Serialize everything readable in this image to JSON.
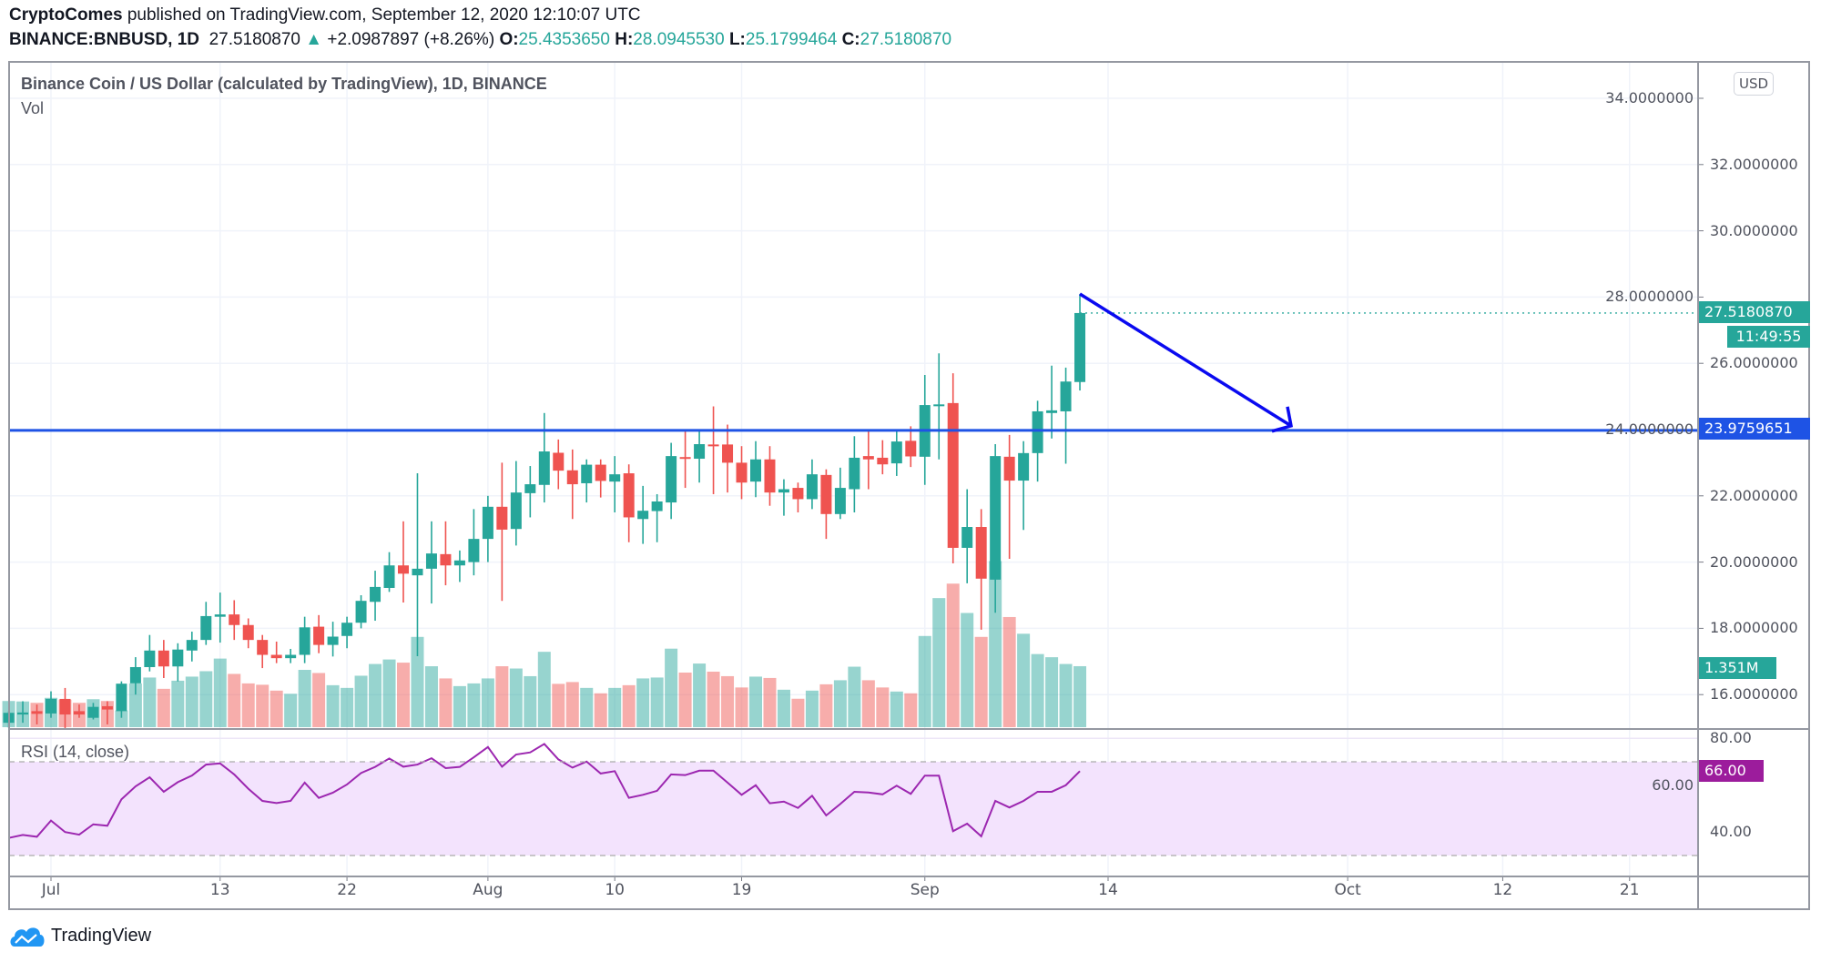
{
  "header": {
    "author": "CryptoComes",
    "published": "published on TradingView.com, September 12, 2020 12:10:07 UTC",
    "symbol": "BINANCE:BNBUSD, 1D",
    "last": "27.5180870",
    "change": "+2.0987897 (+8.26%)",
    "o_label": "O:",
    "o": "25.4353650",
    "h_label": "H:",
    "h": "28.0945530",
    "l_label": "L:",
    "l": "25.1799464",
    "c_label": "C:",
    "c": "27.5180870"
  },
  "legend": {
    "title": "Binance Coin / US Dollar (calculated by TradingView), 1D, BINANCE",
    "volume": "Vol",
    "rsi": "RSI (14, close)"
  },
  "currency_badge": "USD",
  "colors": {
    "up": "#26a69a",
    "down": "#ef5350",
    "support_line": "#1e53e5",
    "arrow": "#0a0af0",
    "rsi": "#9c27b0",
    "rsi_band": "#f3e3fd"
  },
  "tags": {
    "last_price": "27.5180870",
    "countdown": "11:49:55",
    "support_price": "23.9759651",
    "volume": "1.351M",
    "rsi": "66.00"
  },
  "footer": {
    "brand": "TradingView"
  },
  "chart_data": [
    {
      "type": "candlestick",
      "price_ticks": [
        "16.0000000",
        "18.0000000",
        "20.0000000",
        "22.0000000",
        "24.0000000",
        "26.0000000",
        "28.0000000",
        "30.0000000",
        "32.0000000",
        "34.0000000"
      ],
      "time_ticks": [
        "Jul",
        "13",
        "22",
        "Aug",
        "10",
        "19",
        "Sep",
        "14",
        "Oct",
        "12",
        "21"
      ],
      "support_level": 23.9759651,
      "arrow": {
        "from_price": 28.094553,
        "to_price": 23.9759651
      },
      "ohlc": [
        [
          15.15,
          15.5,
          15.0,
          15.45
        ],
        [
          15.4,
          15.8,
          15.15,
          15.46
        ],
        [
          15.5,
          15.7,
          15.1,
          15.42
        ],
        [
          15.43,
          16.1,
          15.3,
          15.87
        ],
        [
          15.87,
          16.2,
          14.98,
          15.4
        ],
        [
          15.5,
          15.7,
          15.3,
          15.4
        ],
        [
          15.3,
          15.75,
          15.25,
          15.63
        ],
        [
          15.65,
          15.8,
          15.1,
          15.55
        ],
        [
          15.5,
          16.4,
          15.3,
          16.33
        ],
        [
          16.34,
          17.13,
          16.0,
          16.83
        ],
        [
          16.83,
          17.8,
          16.7,
          17.33
        ],
        [
          17.33,
          17.65,
          16.5,
          16.85
        ],
        [
          16.85,
          17.55,
          16.4,
          17.36
        ],
        [
          17.33,
          17.9,
          17.0,
          17.65
        ],
        [
          17.65,
          18.8,
          17.5,
          18.37
        ],
        [
          18.35,
          19.08,
          17.57,
          18.42
        ],
        [
          18.42,
          18.85,
          17.65,
          18.1
        ],
        [
          18.1,
          18.3,
          17.4,
          17.65
        ],
        [
          17.65,
          17.8,
          16.8,
          17.2
        ],
        [
          17.2,
          17.6,
          16.95,
          17.1
        ],
        [
          17.1,
          17.38,
          16.95,
          17.2
        ],
        [
          17.2,
          18.35,
          16.95,
          18.03
        ],
        [
          18.05,
          18.4,
          17.25,
          17.5
        ],
        [
          17.5,
          18.2,
          17.15,
          17.75
        ],
        [
          17.77,
          18.35,
          17.4,
          18.17
        ],
        [
          18.17,
          19.0,
          18.0,
          18.83
        ],
        [
          18.8,
          19.74,
          18.23,
          19.25
        ],
        [
          19.22,
          20.3,
          19.1,
          19.9
        ],
        [
          19.9,
          21.23,
          18.78,
          19.65
        ],
        [
          19.6,
          22.68,
          17.16,
          19.8
        ],
        [
          19.8,
          21.23,
          18.75,
          20.26
        ],
        [
          20.24,
          21.23,
          19.3,
          19.9
        ],
        [
          19.9,
          20.35,
          19.4,
          20.05
        ],
        [
          20.0,
          21.6,
          19.6,
          20.7
        ],
        [
          20.7,
          22.0,
          20.0,
          21.67
        ],
        [
          21.67,
          23.0,
          18.83,
          20.98
        ],
        [
          21.0,
          23.05,
          20.5,
          22.1
        ],
        [
          22.08,
          22.9,
          21.35,
          22.35
        ],
        [
          22.33,
          24.5,
          21.8,
          23.34
        ],
        [
          23.3,
          23.7,
          22.2,
          22.76
        ],
        [
          22.77,
          23.4,
          21.3,
          22.35
        ],
        [
          22.38,
          23.1,
          21.8,
          22.94
        ],
        [
          22.94,
          23.1,
          21.95,
          22.45
        ],
        [
          22.43,
          23.2,
          21.5,
          22.65
        ],
        [
          22.68,
          22.95,
          20.6,
          21.35
        ],
        [
          21.3,
          22.3,
          20.55,
          21.55
        ],
        [
          21.54,
          22.05,
          20.6,
          21.83
        ],
        [
          21.8,
          23.6,
          21.3,
          23.2
        ],
        [
          23.17,
          24.0,
          22.24,
          23.13
        ],
        [
          23.12,
          24.0,
          22.4,
          23.56
        ],
        [
          23.55,
          24.7,
          22.05,
          23.53
        ],
        [
          23.55,
          24.15,
          22.1,
          23.0
        ],
        [
          23.0,
          23.5,
          21.9,
          22.4
        ],
        [
          22.43,
          23.65,
          21.96,
          23.1
        ],
        [
          23.1,
          23.5,
          21.7,
          22.1
        ],
        [
          22.1,
          22.5,
          21.4,
          22.2
        ],
        [
          22.24,
          22.4,
          21.5,
          21.9
        ],
        [
          21.9,
          23.1,
          21.6,
          22.65
        ],
        [
          22.63,
          22.8,
          20.7,
          21.45
        ],
        [
          21.45,
          22.85,
          21.3,
          22.24
        ],
        [
          22.2,
          23.8,
          21.5,
          23.15
        ],
        [
          23.2,
          24.0,
          22.2,
          23.1
        ],
        [
          23.15,
          23.68,
          22.65,
          22.95
        ],
        [
          22.98,
          24.0,
          22.6,
          23.64
        ],
        [
          23.66,
          24.1,
          22.87,
          23.19
        ],
        [
          23.18,
          25.65,
          22.33,
          24.74
        ],
        [
          24.74,
          26.3,
          23.1,
          24.76
        ],
        [
          24.8,
          25.7,
          19.96,
          20.43
        ],
        [
          20.43,
          22.2,
          19.36,
          21.06
        ],
        [
          21.06,
          21.6,
          17.96,
          19.5
        ],
        [
          19.47,
          23.56,
          18.47,
          23.2
        ],
        [
          23.18,
          23.84,
          20.1,
          22.46
        ],
        [
          22.46,
          23.65,
          20.97,
          23.29
        ],
        [
          23.29,
          24.87,
          22.43,
          24.55
        ],
        [
          24.5,
          25.93,
          23.73,
          24.58
        ],
        [
          24.55,
          25.87,
          22.97,
          25.45
        ],
        [
          25.435365,
          28.094553,
          25.1799464,
          27.518087
        ]
      ],
      "volume_millions": [
        0.58,
        0.57,
        0.54,
        0.65,
        0.61,
        0.54,
        0.62,
        0.58,
        0.37,
        0.97,
        1.1,
        0.85,
        1.03,
        1.12,
        1.24,
        1.52,
        1.18,
        0.97,
        0.94,
        0.81,
        0.74,
        1.27,
        1.2,
        0.93,
        0.87,
        1.14,
        1.4,
        1.5,
        1.43,
        2.0,
        1.35,
        1.08,
        0.91,
        0.97,
        1.08,
        1.35,
        1.3,
        1.13,
        1.67,
        0.96,
        1.0,
        0.87,
        0.75,
        0.87,
        0.93,
        1.08,
        1.1,
        1.74,
        1.21,
        1.41,
        1.23,
        1.13,
        0.88,
        1.12,
        1.09,
        0.83,
        0.63,
        0.81,
        0.95,
        1.04,
        1.34,
        1.04,
        0.88,
        0.79,
        0.75,
        2.02,
        2.86,
        3.18,
        2.53,
        2.0,
        3.68,
        2.44,
        2.07,
        1.62,
        1.55,
        1.4,
        1.351
      ]
    },
    {
      "type": "line",
      "title": "RSI (14, close)",
      "y_ticks": [
        "80.00",
        "60.00",
        "40.00"
      ],
      "band": [
        30,
        70
      ],
      "values": [
        37.5,
        38.8,
        38.0,
        44.9,
        40.0,
        38.9,
        43.3,
        42.7,
        54.0,
        59.5,
        63.4,
        57.2,
        61.3,
        64.1,
        68.8,
        69.3,
        64.6,
        58.5,
        53.3,
        52.4,
        53.3,
        61.1,
        54.6,
        56.8,
        60.3,
        65.2,
        67.8,
        71.4,
        67.9,
        68.8,
        71.5,
        67.3,
        67.8,
        71.9,
        76.3,
        67.9,
        73.1,
        74.0,
        77.6,
        71.0,
        67.5,
        70.1,
        65.0,
        66.0,
        54.6,
        55.9,
        57.6,
        64.6,
        64.3,
        66.2,
        66.2,
        61.1,
        55.9,
        60.0,
        52.3,
        53.0,
        50.3,
        55.5,
        47.1,
        52.0,
        57.2,
        56.9,
        56.1,
        59.8,
        56.3,
        64.1,
        64.1,
        40.4,
        43.6,
        38.2,
        53.3,
        50.5,
        53.3,
        57.2,
        57.2,
        60.0,
        66.0
      ]
    }
  ]
}
